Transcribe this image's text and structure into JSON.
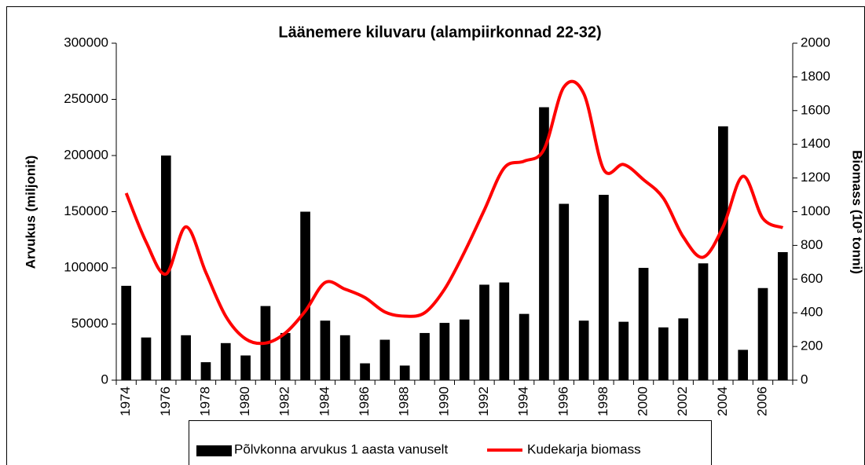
{
  "chart_data": {
    "type": "bar+line",
    "title": "Läänemere kiluvaru (alampiirkonnad 22-32)",
    "y_label": "Arvukus (miljonit)",
    "y2_label": "Biomass (10³ tonni)",
    "categories": [
      "1974",
      null,
      "1976",
      null,
      "1978",
      null,
      "1980",
      null,
      "1982",
      null,
      "1984",
      null,
      "1986",
      null,
      "1988",
      null,
      "1990",
      null,
      "1992",
      null,
      "1994",
      null,
      "1996",
      null,
      "1998",
      null,
      "2000",
      null,
      "2002",
      null,
      "2004",
      null,
      "2006",
      null
    ],
    "series": [
      {
        "name": "Põlvkonna arvukus 1 aasta vanuselt",
        "type": "bar",
        "color": "#000000",
        "values": [
          84000,
          38000,
          200000,
          40000,
          16000,
          33000,
          22000,
          66000,
          42000,
          150000,
          53000,
          40000,
          15000,
          36000,
          13000,
          42000,
          51000,
          54000,
          85000,
          87000,
          59000,
          243000,
          157000,
          53000,
          165000,
          52000,
          100000,
          47000,
          55000,
          104000,
          226000,
          27000,
          82000,
          114000
        ]
      },
      {
        "name": "Kudekarja biomass",
        "type": "line",
        "axis": "y2",
        "color": "#ff0000",
        "values": [
          1110,
          820,
          630,
          910,
          640,
          380,
          245,
          220,
          280,
          410,
          580,
          540,
          490,
          405,
          380,
          400,
          540,
          760,
          1010,
          1260,
          1300,
          1370,
          1740,
          1700,
          1250,
          1280,
          1190,
          1080,
          850,
          730,
          910,
          1210,
          960,
          905
        ]
      }
    ],
    "ylim": [
      0,
      300000
    ],
    "yticks": [
      0,
      50000,
      100000,
      150000,
      200000,
      250000,
      300000
    ],
    "y2lim": [
      0,
      2000
    ],
    "y2ticks": [
      0,
      200,
      400,
      600,
      800,
      1000,
      1200,
      1400,
      1600,
      1800,
      2000
    ],
    "grid": false,
    "legend": "bottom"
  }
}
